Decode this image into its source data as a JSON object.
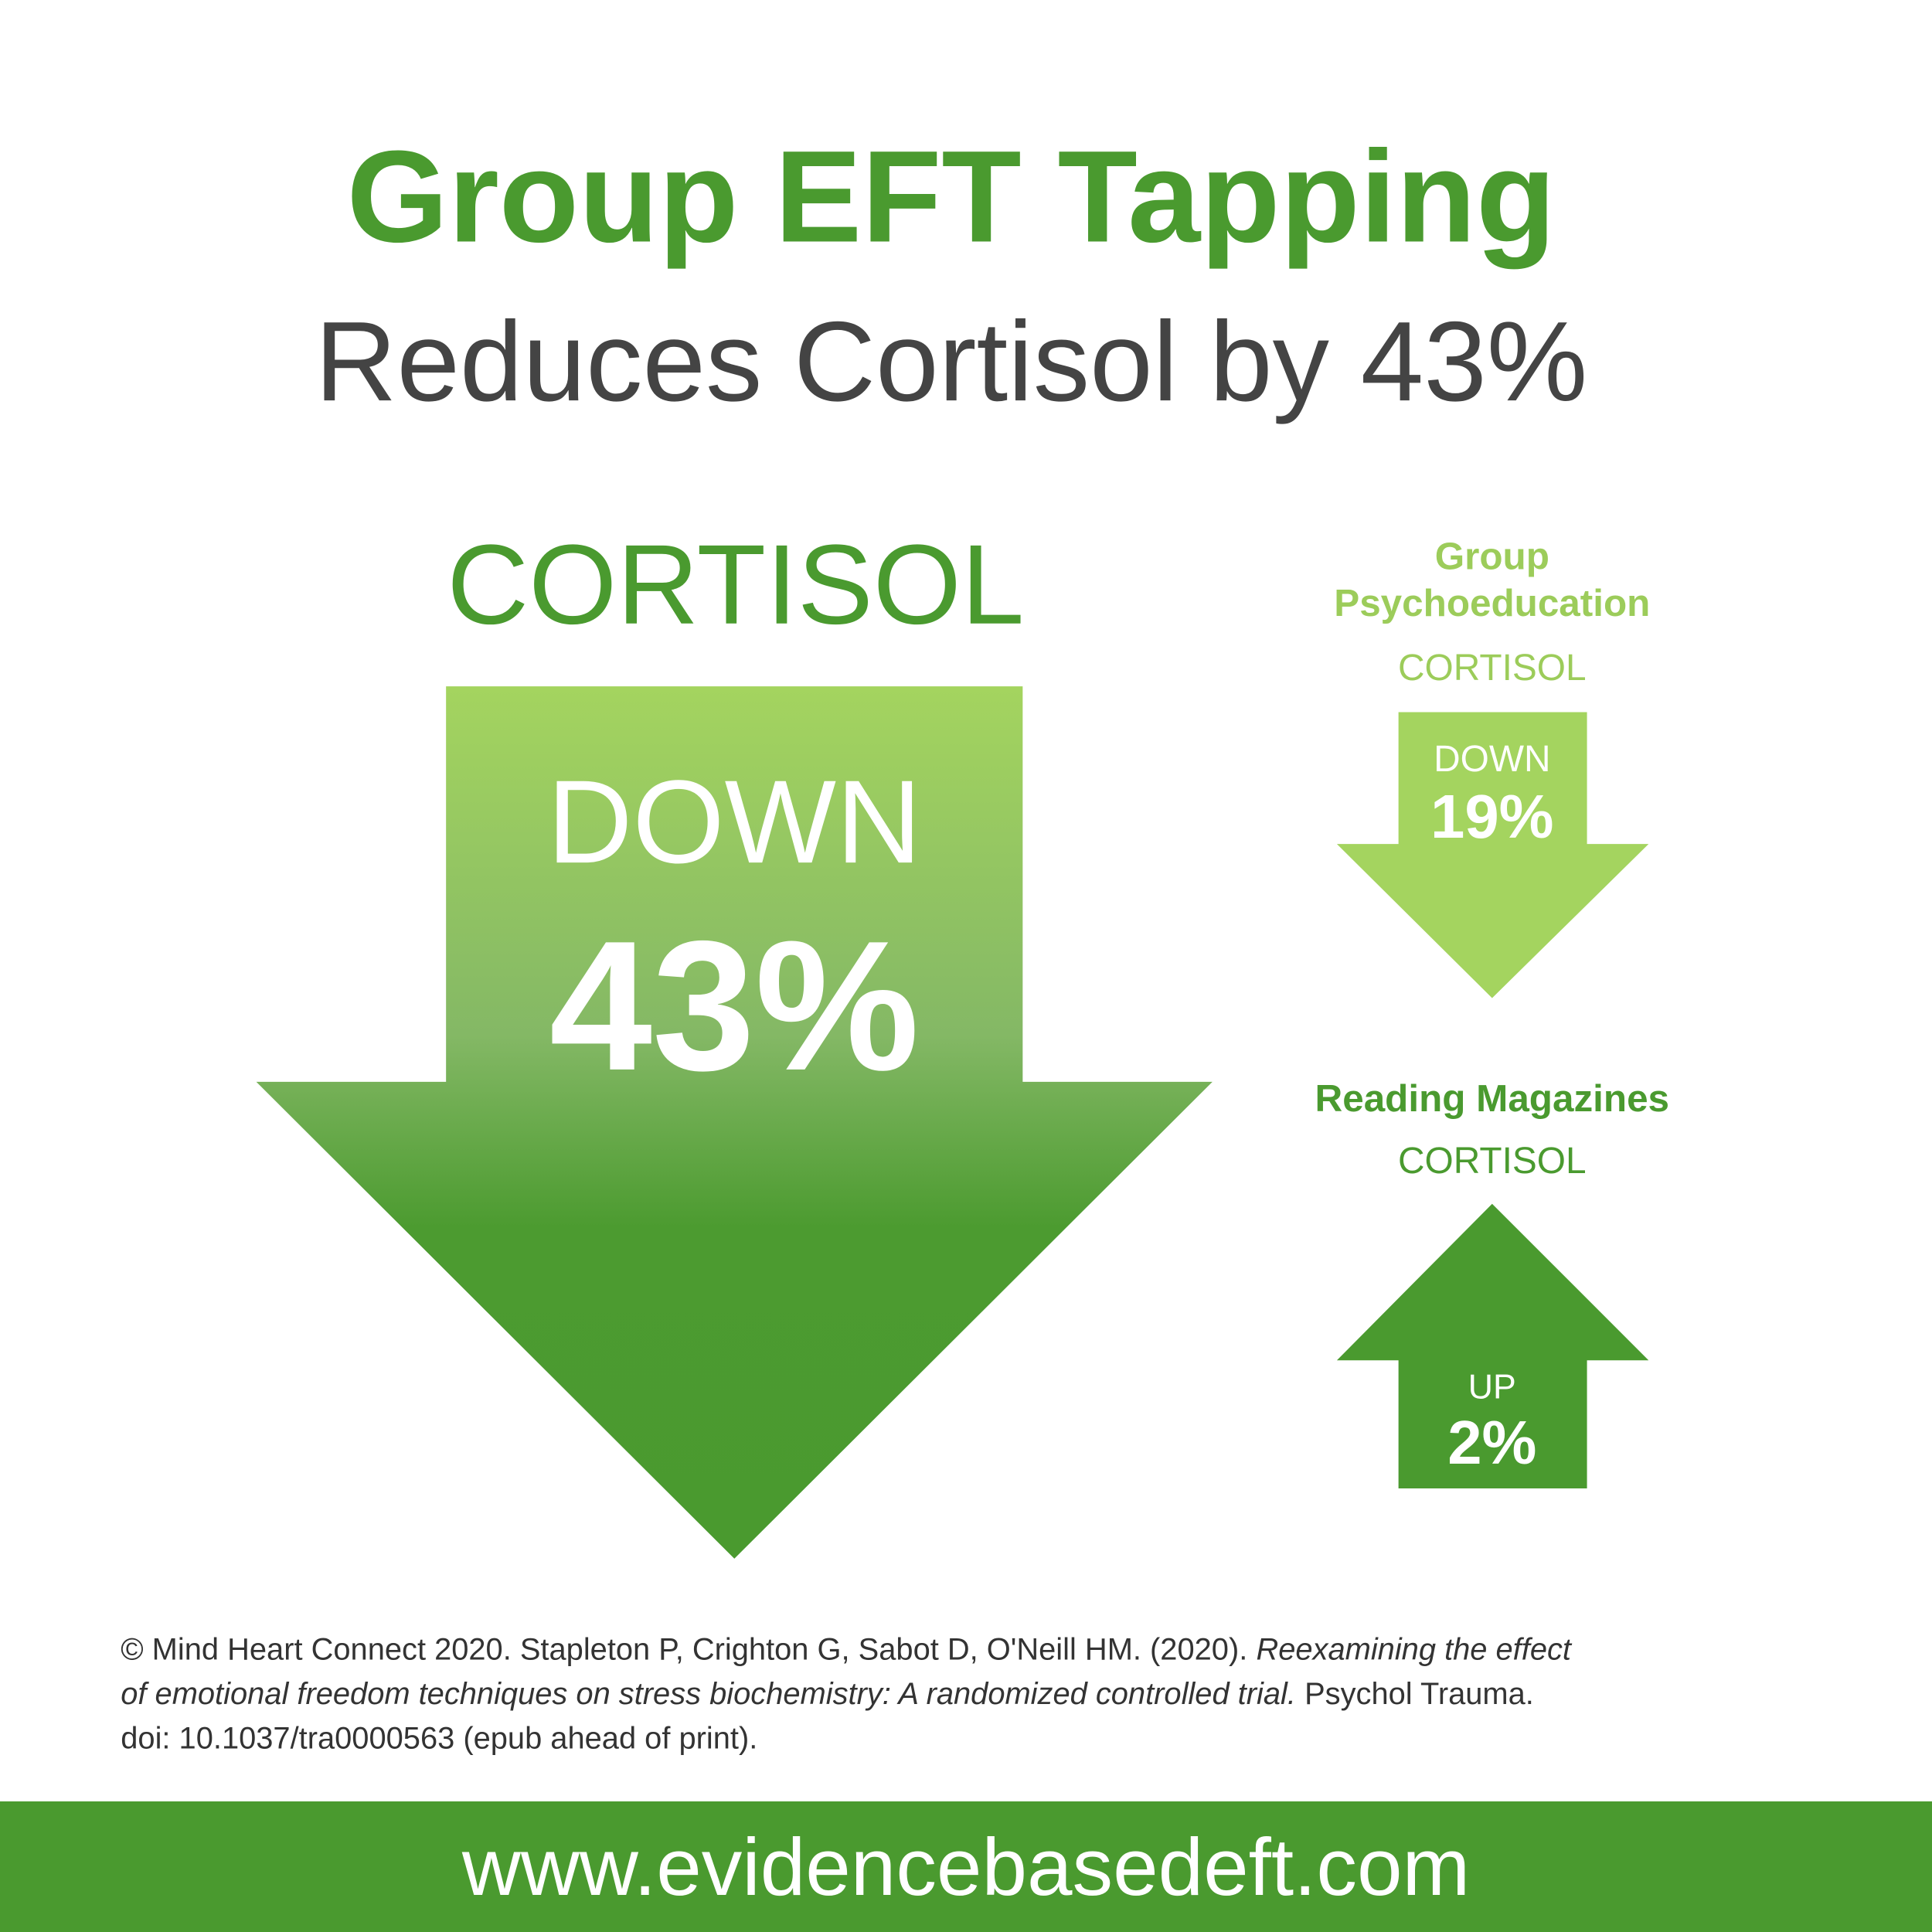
{
  "header": {
    "title": "Group EFT Tapping",
    "subtitle": "Reduces Cortisol by 43%"
  },
  "main": {
    "label": "CORTISOL",
    "direction": "DOWN",
    "value": "43%"
  },
  "comparisons": [
    {
      "name_lines": [
        "Group",
        "Psychoeducation"
      ],
      "label": "CORTISOL",
      "direction": "DOWN",
      "value": "19%"
    },
    {
      "name_lines": [
        "Reading Magazines"
      ],
      "label": "CORTISOL",
      "direction": "UP",
      "value": "2%"
    }
  ],
  "citation": {
    "lines": [
      [
        "© Mind Heart Connect 2020. Stapleton P, Crighton G, Sabot D, O'Neill HM. (2020).",
        "Reexamining the effect"
      ],
      [
        "of emotional freedom techniques on stress biochemistry:  A randomized controlled trial.",
        "Psychol Trauma."
      ],
      [
        "doi: 10.1037/tra0000563 (epub ahead of print)."
      ]
    ]
  },
  "footer": {
    "url": "www.evidencebasedeft.com"
  }
}
